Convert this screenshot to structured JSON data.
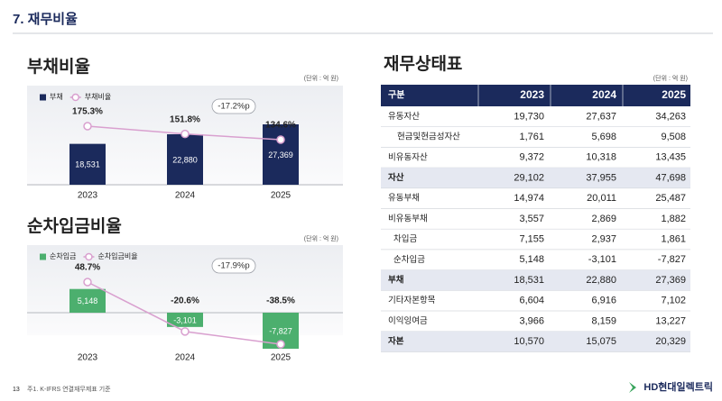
{
  "header": {
    "title": "7. 재무비율"
  },
  "chart_data": [
    {
      "type": "combo",
      "title": "부채비율",
      "unit": "(단위 : 억 원)",
      "categories": [
        "2023",
        "2024",
        "2025"
      ],
      "series": [
        {
          "name": "부채",
          "type": "bar",
          "color": "#1b2a5c",
          "values": [
            18531,
            22880,
            27369
          ],
          "value_labels": [
            "18,531",
            "22,880",
            "27,369"
          ]
        },
        {
          "name": "부채비율",
          "type": "line",
          "color": "#d9a0cf",
          "values": [
            175.3,
            151.8,
            134.6
          ],
          "value_labels": [
            "175.3%",
            "151.8%",
            "134.6%"
          ]
        }
      ],
      "annotation": "-17.2%p"
    },
    {
      "type": "combo",
      "title": "순차입금비율",
      "unit": "(단위 : 억 원)",
      "categories": [
        "2023",
        "2024",
        "2025"
      ],
      "series": [
        {
          "name": "순차입금",
          "type": "bar",
          "color": "#4caf6e",
          "values": [
            5148,
            -3101,
            -7827
          ],
          "value_labels": [
            "5,148",
            "-3,101",
            "-7,827"
          ]
        },
        {
          "name": "순차입금비율",
          "type": "line",
          "color": "#d9a0cf",
          "values": [
            48.7,
            -20.6,
            -38.5
          ],
          "value_labels": [
            "48.7%",
            "-20.6%",
            "-38.5%"
          ]
        }
      ],
      "annotation": "-17.9%p"
    }
  ],
  "table": {
    "title": "재무상태표",
    "unit": "(단위 : 억 원)",
    "header": [
      "구분",
      "2023",
      "2024",
      "2025"
    ],
    "rows": [
      [
        "유동자산",
        "19,730",
        "27,637",
        "34,263"
      ],
      [
        "현금및현금성자산",
        "1,761",
        "5,698",
        "9,508"
      ],
      [
        "비유동자산",
        "9,372",
        "10,318",
        "13,435"
      ],
      [
        "자산",
        "29,102",
        "37,955",
        "47,698"
      ],
      [
        "유동부채",
        "14,974",
        "20,011",
        "25,487"
      ],
      [
        "비유동부채",
        "3,557",
        "2,869",
        "1,882"
      ],
      [
        "차입금",
        "7,155",
        "2,937",
        "1,861"
      ],
      [
        "순차입금",
        "5,148",
        "-3,101",
        "-7,827"
      ],
      [
        "부채",
        "18,531",
        "22,880",
        "27,369"
      ],
      [
        "기타자본항목",
        "6,604",
        "6,916",
        "7,102"
      ],
      [
        "이익잉여금",
        "3,966",
        "8,159",
        "13,227"
      ],
      [
        "자본",
        "10,570",
        "15,075",
        "20,329"
      ]
    ]
  },
  "footer": {
    "page": "13",
    "note": "주1. K-IFRS 연결재무제표 기준",
    "logo": "HD현대일렉트릭"
  }
}
